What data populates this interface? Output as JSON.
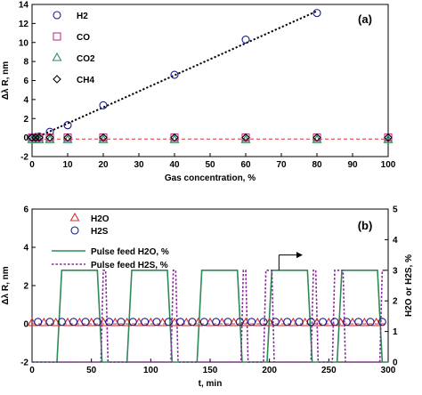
{
  "chart_data": [
    {
      "type": "scatter",
      "panel_label": "(a)",
      "xlabel": "Gas concentration, %",
      "ylabel": "Δλ R, nm",
      "xlim": [
        0,
        100
      ],
      "ylim": [
        -2,
        14
      ],
      "xticks": [
        0,
        10,
        20,
        30,
        40,
        50,
        60,
        70,
        80,
        90,
        100
      ],
      "yticks": [
        -2,
        0,
        2,
        4,
        6,
        8,
        10,
        12,
        14
      ],
      "legend_position": "top-left",
      "colors": {
        "H2": "#1a1a8c",
        "CO": "#c2338f",
        "CO2": "#2e8b57",
        "CH4": "#000000",
        "fit": "#000000",
        "baseline": "#d93030"
      },
      "series": [
        {
          "name": "H2",
          "marker": "circle",
          "x": [
            0,
            1,
            2,
            5,
            10,
            20,
            40,
            60,
            80
          ],
          "y": [
            0.0,
            0.05,
            0.1,
            0.6,
            1.3,
            3.4,
            6.6,
            10.3,
            13.1
          ]
        },
        {
          "name": "CO",
          "marker": "square",
          "x": [
            0,
            1,
            2,
            5,
            10,
            20,
            40,
            60,
            80,
            100
          ],
          "y": [
            0,
            0,
            0,
            0,
            0,
            0,
            0,
            0,
            0,
            0
          ]
        },
        {
          "name": "CO2",
          "marker": "triangle",
          "x": [
            0,
            1,
            2,
            5,
            10,
            20,
            40,
            60,
            80,
            100
          ],
          "y": [
            -0.25,
            -0.25,
            -0.25,
            -0.25,
            -0.25,
            -0.25,
            -0.25,
            -0.25,
            -0.25,
            -0.25
          ]
        },
        {
          "name": "CH4",
          "marker": "diamond",
          "x": [
            0,
            1,
            2,
            5,
            10,
            20,
            40,
            60,
            80,
            100
          ],
          "y": [
            0,
            0,
            0,
            0,
            0,
            0,
            0,
            0,
            0,
            0
          ]
        }
      ],
      "fit_line": {
        "style": "dotted",
        "x": [
          0,
          80
        ],
        "y": [
          -0.2,
          13.3
        ]
      },
      "baseline": {
        "style": "dashed",
        "y": -0.15
      }
    },
    {
      "type": "line",
      "panel_label": "(b)",
      "xlabel": "t, min",
      "ylabel": "Δλ R, nm",
      "y2label": "H2O or H2S, %",
      "xlim": [
        0,
        300
      ],
      "ylim": [
        -2,
        6
      ],
      "y2lim": [
        0,
        5
      ],
      "xticks": [
        0,
        50,
        100,
        150,
        200,
        250,
        300
      ],
      "yticks": [
        -2,
        0,
        2,
        4,
        6
      ],
      "y2ticks": [
        0,
        1,
        2,
        3,
        4,
        5
      ],
      "legend_position": "top-left",
      "colors": {
        "H2O": "#d93030",
        "H2S": "#1a1a8c",
        "pulse_h2o": "#2e8b57",
        "pulse_h2s": "#8b2a9b",
        "baseline": "#d93030",
        "arrow": "#000000"
      },
      "series": [
        {
          "name": "H2O",
          "marker": "triangle",
          "x": [
            0,
            10,
            20,
            30,
            40,
            50,
            60,
            70,
            80,
            90,
            100,
            110,
            120,
            130,
            140,
            150,
            160,
            170,
            180,
            190,
            200,
            210,
            220,
            230,
            240,
            250,
            260,
            270,
            280,
            290
          ],
          "y": [
            0.05,
            0.05,
            0.05,
            0.05,
            0.05,
            0.05,
            0.05,
            0.05,
            0.05,
            0.05,
            0.05,
            0.05,
            0.05,
            0.05,
            0.05,
            0.05,
            0.05,
            0.05,
            0.05,
            0.05,
            0.05,
            0.05,
            0.05,
            0.05,
            0.05,
            0.05,
            0.05,
            0.05,
            0.05,
            0.05
          ]
        },
        {
          "name": "H2S",
          "marker": "circle",
          "x": [
            5,
            15,
            25,
            35,
            45,
            55,
            65,
            75,
            85,
            95,
            105,
            115,
            125,
            135,
            145,
            155,
            165,
            175,
            185,
            195,
            205,
            215,
            225,
            235,
            245,
            255,
            265,
            275,
            285,
            295
          ],
          "y": [
            0.1,
            0.1,
            0.1,
            0.1,
            0.1,
            0.1,
            0.1,
            0.1,
            0.1,
            0.1,
            0.1,
            0.1,
            0.1,
            0.1,
            0.1,
            0.1,
            0.1,
            0.1,
            0.1,
            0.1,
            0.1,
            0.1,
            0.1,
            0.1,
            0.1,
            0.1,
            0.1,
            0.1,
            0.1,
            0.1
          ]
        },
        {
          "name": "Pulse feed H2O, %",
          "axis": "right",
          "style": "solid",
          "x": [
            0,
            21,
            25,
            55,
            59,
            80,
            84,
            114,
            118,
            139,
            143,
            173,
            177,
            198,
            202,
            232,
            236,
            257,
            261,
            291,
            295,
            300
          ],
          "y": [
            0,
            0,
            3,
            3,
            0,
            0,
            3,
            3,
            0,
            0,
            3,
            3,
            0,
            0,
            3,
            3,
            0,
            0,
            3,
            3,
            0,
            0
          ]
        },
        {
          "name": "Pulse feed H2S, %",
          "axis": "right",
          "style": "dotted",
          "x": [
            0,
            58,
            60,
            62,
            64,
            117,
            119,
            121,
            123,
            176,
            178,
            180,
            182,
            195,
            197,
            202,
            204,
            235,
            237,
            239,
            241,
            253,
            255,
            262,
            264,
            293,
            295,
            300
          ],
          "y": [
            0,
            0,
            3,
            3,
            0,
            0,
            3,
            3,
            0,
            0,
            3,
            3,
            0,
            0,
            3,
            3,
            0,
            0,
            3,
            3,
            0,
            0,
            3,
            3,
            0,
            0,
            3,
            3
          ]
        }
      ],
      "baseline": {
        "style": "dashed",
        "y": 0
      },
      "arrow": {
        "x_from": 208,
        "x_to": 228,
        "y": 3.5,
        "direction": "right"
      }
    }
  ]
}
